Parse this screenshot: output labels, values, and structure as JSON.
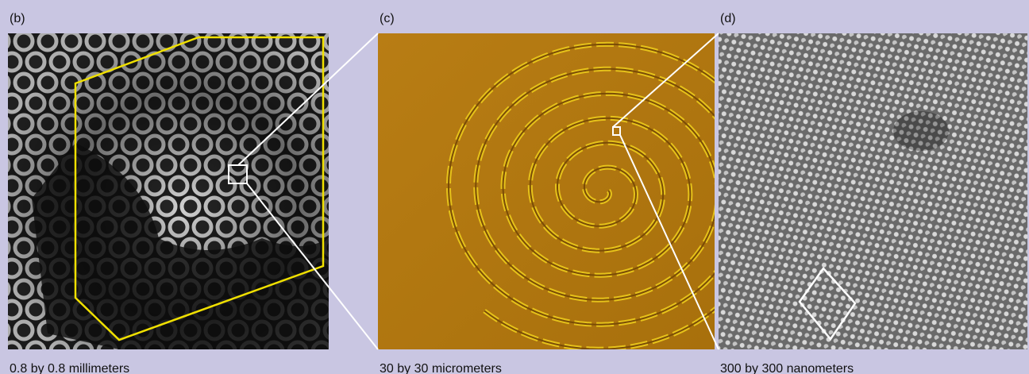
{
  "panels": [
    {
      "label": "(b)",
      "caption": "0.8 by 0.8 millimeters"
    },
    {
      "label": "(c)",
      "caption": "30 by 30 micrometers"
    },
    {
      "label": "(d)",
      "caption": "300 by 300 nanometers"
    }
  ]
}
